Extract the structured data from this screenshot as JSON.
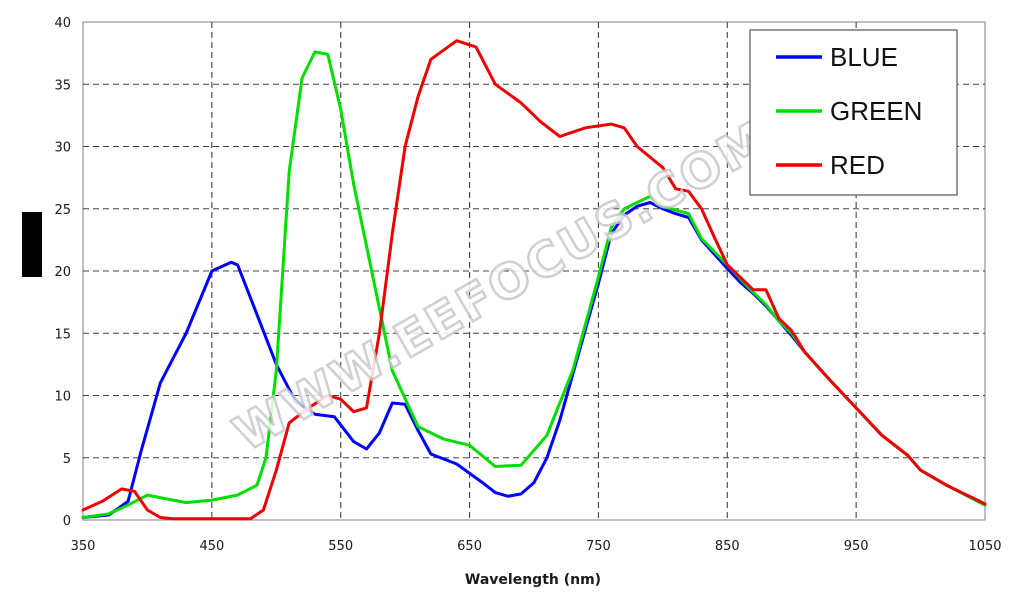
{
  "watermark": "WWW.EEFOCUS.COM",
  "chart_data": {
    "type": "line",
    "xlabel": "Wavelength (nm)",
    "ylabel": "",
    "xlim": [
      350,
      1050
    ],
    "ylim": [
      0,
      40
    ],
    "xticks": [
      350,
      450,
      550,
      650,
      750,
      850,
      950,
      1050
    ],
    "yticks": [
      0,
      5,
      10,
      15,
      20,
      25,
      30,
      35,
      40
    ],
    "grid": true,
    "legend_position": "top-right",
    "series": [
      {
        "name": "BLUE",
        "color": "#0000ff",
        "x": [
          350,
          370,
          385,
          395,
          410,
          430,
          450,
          465,
          470,
          485,
          500,
          515,
          530,
          545,
          560,
          570,
          580,
          590,
          600,
          610,
          620,
          640,
          660,
          670,
          680,
          690,
          700,
          710,
          720,
          735,
          750,
          760,
          770,
          780,
          790,
          800,
          810,
          820,
          830,
          850,
          860,
          870,
          880,
          890,
          900,
          910,
          930,
          950,
          970,
          990,
          1000,
          1020,
          1050
        ],
        "y": [
          0.2,
          0.4,
          1.5,
          5.5,
          11,
          15,
          20,
          20.7,
          20.5,
          16.5,
          12.5,
          9.5,
          8.5,
          8.3,
          6.3,
          5.7,
          7,
          9.4,
          9.3,
          7.2,
          5.3,
          4.5,
          3,
          2.2,
          1.9,
          2.1,
          3,
          5,
          8,
          13.5,
          19,
          23,
          24.5,
          25.2,
          25.5,
          25,
          24.6,
          24.3,
          22.5,
          20.2,
          19.1,
          18.2,
          17.2,
          16,
          14.8,
          13.5,
          11.2,
          9,
          6.8,
          5.2,
          4,
          2.8,
          1.2
        ]
      },
      {
        "name": "GREEN",
        "color": "#00dd00",
        "x": [
          350,
          370,
          385,
          400,
          410,
          430,
          450,
          470,
          485,
          492,
          500,
          510,
          520,
          530,
          540,
          550,
          560,
          570,
          590,
          610,
          630,
          650,
          670,
          690,
          710,
          730,
          750,
          760,
          770,
          790,
          800,
          810,
          820,
          830,
          850,
          860,
          870,
          880,
          890,
          900,
          910,
          930,
          950,
          970,
          990,
          1000,
          1020,
          1050
        ],
        "y": [
          0.2,
          0.5,
          1.2,
          2,
          1.8,
          1.4,
          1.6,
          2,
          2.8,
          5,
          12,
          28,
          35.5,
          37.6,
          37.4,
          33,
          27,
          22,
          12,
          7.5,
          6.5,
          6,
          4.3,
          4.4,
          6.8,
          12,
          19.5,
          23.5,
          25,
          26,
          25.2,
          24.9,
          24.6,
          22.6,
          20.5,
          19.4,
          18.3,
          17.3,
          16,
          15,
          13.5,
          11.2,
          9,
          6.8,
          5.2,
          4,
          2.8,
          1.2
        ]
      },
      {
        "name": "RED",
        "color": "#ee0000",
        "x": [
          350,
          365,
          380,
          390,
          400,
          410,
          420,
          440,
          460,
          480,
          490,
          500,
          510,
          525,
          540,
          550,
          560,
          570,
          580,
          590,
          600,
          610,
          620,
          640,
          655,
          670,
          690,
          705,
          720,
          740,
          760,
          770,
          780,
          800,
          810,
          820,
          830,
          840,
          850,
          860,
          870,
          880,
          890,
          900,
          910,
          930,
          950,
          970,
          990,
          1000,
          1020,
          1050
        ],
        "y": [
          0.8,
          1.5,
          2.5,
          2.3,
          0.8,
          0.2,
          0.1,
          0.1,
          0.1,
          0.1,
          0.8,
          4,
          7.8,
          9,
          10,
          9.7,
          8.7,
          9,
          15,
          23,
          30,
          34,
          37,
          38.5,
          38,
          35,
          33.5,
          32,
          30.8,
          31.5,
          31.8,
          31.5,
          30,
          28.3,
          26.6,
          26.4,
          25,
          22.7,
          20.5,
          19.5,
          18.5,
          18.5,
          16.2,
          15.2,
          13.5,
          11.2,
          9,
          6.8,
          5.2,
          4,
          2.8,
          1.3
        ]
      }
    ]
  }
}
